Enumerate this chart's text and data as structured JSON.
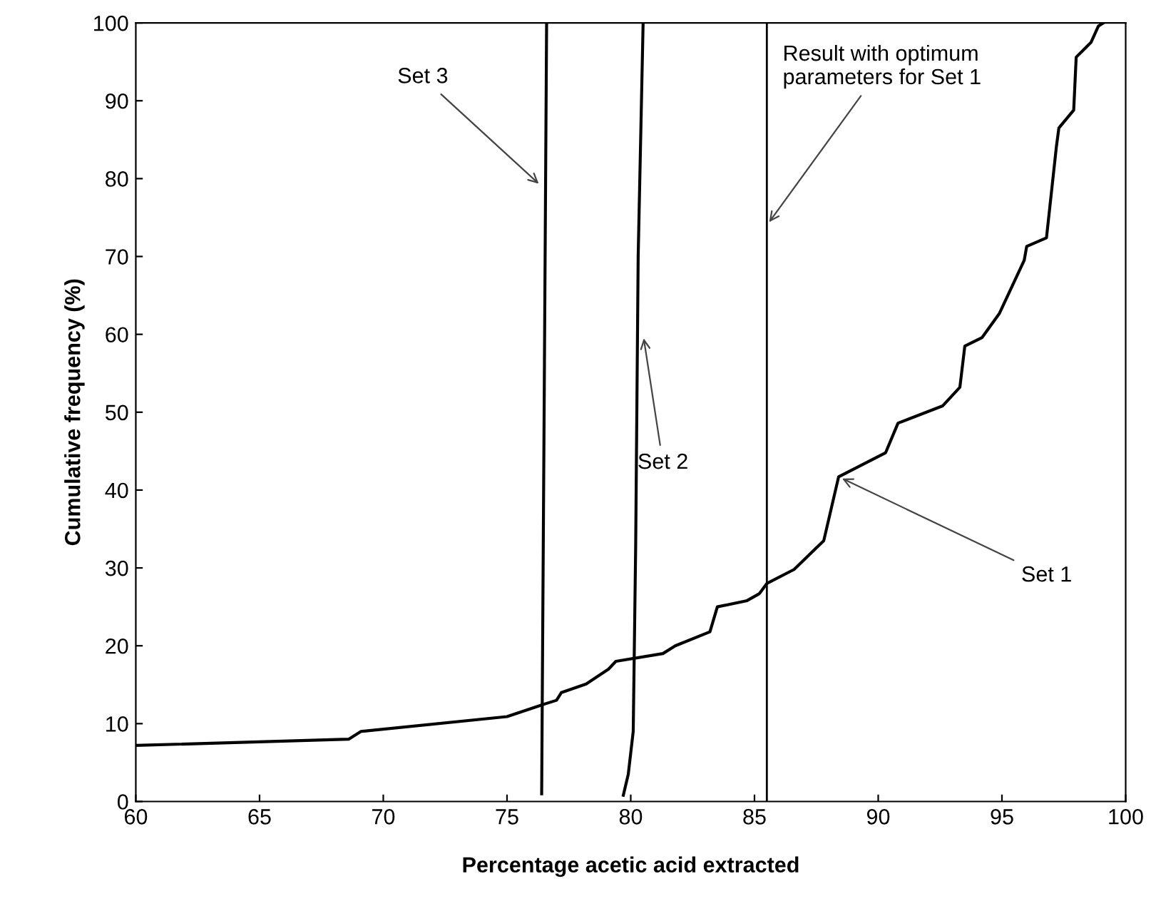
{
  "chart_data": {
    "type": "line",
    "xlabel": "Percentage acetic acid extracted",
    "ylabel": "Cumulative frequency (%)",
    "xlim": [
      60,
      100
    ],
    "xticks": [
      60,
      65,
      70,
      75,
      80,
      85,
      90,
      95,
      100
    ],
    "ylim": [
      0,
      100
    ],
    "yticks": [
      0,
      10,
      20,
      30,
      40,
      50,
      60,
      70,
      80,
      90,
      100
    ],
    "grid": false,
    "legend": false,
    "marker": "none",
    "line_style": "solid",
    "series": [
      {
        "color": "#000000",
        "x": [
          60,
          68.6,
          69.1,
          75.0,
          76.4,
          77.0,
          77.2,
          78.2,
          79.1,
          79.4,
          81.3,
          81.8,
          83.2,
          83.5,
          84.7,
          85.2,
          85.5,
          86.6,
          87.8,
          88.4,
          90.3,
          90.8,
          92.6,
          93.3,
          93.5,
          94.2,
          94.9,
          95.9,
          96.0,
          96.8,
          97.2,
          97.3,
          97.9,
          98.0,
          98.6,
          98.9,
          99.1
        ],
        "values": [
          7.2,
          8.0,
          9.0,
          10.9,
          12.4,
          13.0,
          14.0,
          15.1,
          17.0,
          18.0,
          19.0,
          20.0,
          21.8,
          25.0,
          25.8,
          26.7,
          28.0,
          29.8,
          33.5,
          41.7,
          44.8,
          48.6,
          50.8,
          53.2,
          58.5,
          59.6,
          62.7,
          69.5,
          71.3,
          72.4,
          84.1,
          86.5,
          88.8,
          95.6,
          97.5,
          99.6,
          100
        ]
      },
      {
        "color": "#000000",
        "x": [
          79.7,
          79.9,
          80.1,
          80.2,
          80.3,
          80.5
        ],
        "values": [
          0.8,
          3.5,
          9,
          33,
          70,
          100
        ]
      },
      {
        "color": "#000000",
        "x": [
          76.4,
          76.5,
          76.6
        ],
        "values": [
          1,
          50,
          100
        ]
      }
    ],
    "ref_lines": [
      {
        "axis": "x",
        "value": 85.5,
        "color": "#000000",
        "line_style": "solid"
      }
    ],
    "annotations": [
      {
        "text": "Set 3",
        "x": 76.4,
        "y": 79
      },
      {
        "text": "Set 2",
        "x": 80.5,
        "y": 60
      },
      {
        "text": "Set 1",
        "x": 88.4,
        "y": 41.7
      },
      {
        "text": "Result with optimum\nparameters for Set 1",
        "x": 85.5,
        "y": 74
      }
    ]
  }
}
